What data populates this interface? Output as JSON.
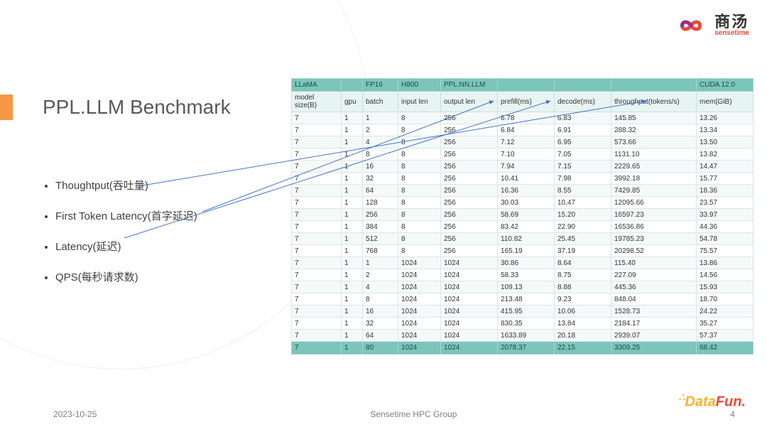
{
  "brand": {
    "cn": "商汤",
    "en": "sensetime"
  },
  "title": "PPL.LLM Benchmark",
  "bullets": [
    "Thoughtput(吞吐量)",
    "First Token Latency(首字延迟)",
    "Latency(延迟)",
    "QPS(每秒请求数)"
  ],
  "table": {
    "super_header": [
      "LLaMA",
      "",
      "FP16",
      "H800",
      "PPL.NN.LLM",
      "",
      "",
      "",
      "CUDA 12.0"
    ],
    "columns": [
      "model size(B)",
      "gpu",
      "batch",
      "input len",
      "output len",
      "prefill(ms)",
      "decode(ms)",
      "throughput(tokens/s)",
      "mem(GiB)"
    ],
    "rows": [
      [
        "7",
        "1",
        "1",
        "8",
        "256",
        "6.78",
        "6.83",
        "145.85",
        "13.26"
      ],
      [
        "7",
        "1",
        "2",
        "8",
        "256",
        "6.84",
        "6.91",
        "288.32",
        "13.34"
      ],
      [
        "7",
        "1",
        "4",
        "8",
        "256",
        "7.12",
        "6.95",
        "573.66",
        "13.50"
      ],
      [
        "7",
        "1",
        "8",
        "8",
        "256",
        "7.10",
        "7.05",
        "1131.10",
        "13.82"
      ],
      [
        "7",
        "1",
        "16",
        "8",
        "256",
        "7.94",
        "7.15",
        "2229.65",
        "14.47"
      ],
      [
        "7",
        "1",
        "32",
        "8",
        "256",
        "10.41",
        "7.98",
        "3992.18",
        "15.77"
      ],
      [
        "7",
        "1",
        "64",
        "8",
        "256",
        "16.36",
        "8.55",
        "7429.85",
        "18.36"
      ],
      [
        "7",
        "1",
        "128",
        "8",
        "256",
        "30.03",
        "10.47",
        "12095.66",
        "23.57"
      ],
      [
        "7",
        "1",
        "256",
        "8",
        "256",
        "58.69",
        "15.20",
        "16597.23",
        "33.97"
      ],
      [
        "7",
        "1",
        "384",
        "8",
        "256",
        "83.42",
        "22.90",
        "16536.86",
        "44.36"
      ],
      [
        "7",
        "1",
        "512",
        "8",
        "256",
        "110.82",
        "25.45",
        "19785.23",
        "54.78"
      ],
      [
        "7",
        "1",
        "768",
        "8",
        "256",
        "165.19",
        "37.19",
        "20298.52",
        "75.57"
      ],
      [
        "7",
        "1",
        "1",
        "1024",
        "1024",
        "30.86",
        "8.64",
        "115.40",
        "13.86"
      ],
      [
        "7",
        "1",
        "2",
        "1024",
        "1024",
        "58.33",
        "8.75",
        "227.09",
        "14.56"
      ],
      [
        "7",
        "1",
        "4",
        "1024",
        "1024",
        "109.13",
        "8.88",
        "445.36",
        "15.93"
      ],
      [
        "7",
        "1",
        "8",
        "1024",
        "1024",
        "213.48",
        "9.23",
        "848.04",
        "18.70"
      ],
      [
        "7",
        "1",
        "16",
        "1024",
        "1024",
        "415.95",
        "10.06",
        "1528.73",
        "24.22"
      ],
      [
        "7",
        "1",
        "32",
        "1024",
        "1024",
        "830.35",
        "13.84",
        "2184.17",
        "35.27"
      ],
      [
        "7",
        "1",
        "64",
        "1024",
        "1024",
        "1633.89",
        "20.18",
        "2939.07",
        "57.37"
      ]
    ],
    "last_row": [
      "7",
      "1",
      "80",
      "1024",
      "1024",
      "2078.37",
      "22.15",
      "3309.25",
      "68.42"
    ]
  },
  "footer": {
    "date": "2023-10-25",
    "center": "Sensetime HPC Group",
    "page": "4"
  },
  "footer_logo": {
    "part1": "Data",
    "part2": "Fun",
    "dot": "."
  },
  "colors": {
    "accent": "#f79646",
    "table_header_bg": "#7cc5bb",
    "arrow": "#4472c4"
  }
}
